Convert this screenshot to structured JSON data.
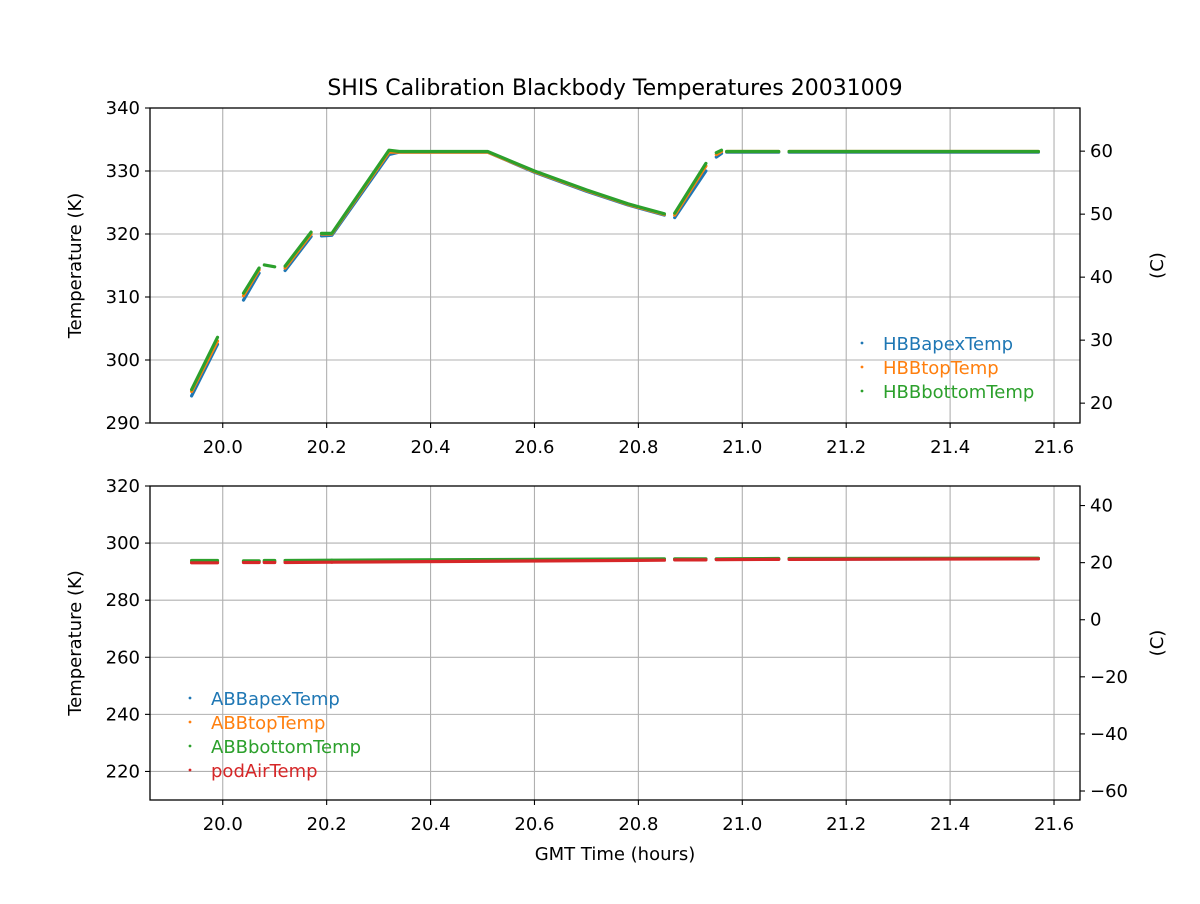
{
  "chart_data": [
    {
      "type": "scatter",
      "title": "SHIS Calibration Blackbody Temperatures 20031009",
      "xlabel": "",
      "ylabel": "Temperature (K)",
      "ylabel_right": "(C)",
      "xlim": [
        19.86,
        21.65
      ],
      "ylim": [
        290,
        340
      ],
      "xticks": [
        20.0,
        20.2,
        20.4,
        20.6,
        20.8,
        21.0,
        21.2,
        21.4,
        21.6
      ],
      "xtick_labels": [
        "20.0",
        "20.2",
        "20.4",
        "20.6",
        "20.8",
        "21.0",
        "21.2",
        "21.4",
        "21.6"
      ],
      "yticks": [
        290,
        300,
        310,
        320,
        330,
        340
      ],
      "ytick_labels": [
        "290",
        "300",
        "310",
        "320",
        "330",
        "340"
      ],
      "yticks_right": [
        20,
        30,
        40,
        50,
        60
      ],
      "ytick_labels_right": [
        "20",
        "30",
        "40",
        "50",
        "60"
      ],
      "grid": true,
      "legend_position": "lower-right",
      "series": [
        {
          "name": "HBBapexTemp",
          "color": "#1f77b4",
          "segments": [
            [
              [
                19.94,
                294.3
              ],
              [
                19.99,
                302.5
              ]
            ],
            [
              [
                20.04,
                309.5
              ],
              [
                20.07,
                313.8
              ]
            ],
            [
              [
                20.12,
                314.2
              ],
              [
                20.17,
                319.6
              ]
            ],
            [
              [
                20.19,
                319.7
              ],
              [
                20.21,
                319.8
              ],
              [
                20.32,
                332.6
              ],
              [
                20.34,
                333.0
              ],
              [
                20.51,
                333.0
              ],
              [
                20.6,
                329.8
              ],
              [
                20.7,
                326.8
              ],
              [
                20.78,
                324.6
              ],
              [
                20.85,
                323.0
              ]
            ],
            [
              [
                20.87,
                322.6
              ],
              [
                20.93,
                330.0
              ]
            ],
            [
              [
                20.95,
                332.2
              ],
              [
                20.96,
                332.8
              ]
            ],
            [
              [
                20.97,
                333.0
              ],
              [
                21.07,
                333.0
              ]
            ],
            [
              [
                21.09,
                333.0
              ],
              [
                21.57,
                333.0
              ]
            ]
          ]
        },
        {
          "name": "HBBtopTemp",
          "color": "#ff7f0e",
          "segments": [
            [
              [
                19.94,
                295.0
              ],
              [
                19.99,
                303.0
              ]
            ],
            [
              [
                20.04,
                310.2
              ],
              [
                20.07,
                314.3
              ]
            ],
            [
              [
                20.12,
                314.6
              ],
              [
                20.17,
                320.0
              ]
            ],
            [
              [
                20.19,
                320.0
              ],
              [
                20.21,
                320.0
              ],
              [
                20.32,
                333.0
              ],
              [
                20.34,
                333.0
              ],
              [
                20.51,
                333.0
              ],
              [
                20.6,
                329.9
              ],
              [
                20.7,
                326.9
              ],
              [
                20.78,
                324.7
              ],
              [
                20.85,
                323.1
              ]
            ],
            [
              [
                20.87,
                323.0
              ],
              [
                20.93,
                330.8
              ]
            ],
            [
              [
                20.95,
                332.6
              ],
              [
                20.96,
                333.1
              ]
            ],
            [
              [
                20.97,
                333.1
              ],
              [
                21.07,
                333.1
              ]
            ],
            [
              [
                21.09,
                333.1
              ],
              [
                21.57,
                333.1
              ]
            ]
          ]
        },
        {
          "name": "HBBbottomTemp",
          "color": "#2ca02c",
          "segments": [
            [
              [
                19.94,
                295.3
              ],
              [
                19.99,
                303.6
              ]
            ],
            [
              [
                20.04,
                310.6
              ],
              [
                20.07,
                314.6
              ]
            ],
            [
              [
                20.08,
                315.1
              ],
              [
                20.1,
                314.8
              ]
            ],
            [
              [
                20.12,
                314.9
              ],
              [
                20.17,
                320.3
              ]
            ],
            [
              [
                20.19,
                320.1
              ],
              [
                20.21,
                320.1
              ],
              [
                20.32,
                333.3
              ],
              [
                20.34,
                333.1
              ],
              [
                20.51,
                333.1
              ],
              [
                20.6,
                330.0
              ],
              [
                20.7,
                327.0
              ],
              [
                20.78,
                324.8
              ],
              [
                20.85,
                323.2
              ]
            ],
            [
              [
                20.87,
                323.3
              ],
              [
                20.93,
                331.2
              ]
            ],
            [
              [
                20.95,
                332.9
              ],
              [
                20.96,
                333.3
              ]
            ],
            [
              [
                20.97,
                333.1
              ],
              [
                21.07,
                333.1
              ]
            ],
            [
              [
                21.09,
                333.1
              ],
              [
                21.57,
                333.1
              ]
            ]
          ]
        }
      ]
    },
    {
      "type": "scatter",
      "title": "",
      "xlabel": "GMT Time (hours)",
      "ylabel": "Temperature (K)",
      "ylabel_right": "(C)",
      "xlim": [
        19.86,
        21.65
      ],
      "ylim": [
        210,
        320
      ],
      "xticks": [
        20.0,
        20.2,
        20.4,
        20.6,
        20.8,
        21.0,
        21.2,
        21.4,
        21.6
      ],
      "xtick_labels": [
        "20.0",
        "20.2",
        "20.4",
        "20.6",
        "20.8",
        "21.0",
        "21.2",
        "21.4",
        "21.6"
      ],
      "yticks": [
        220,
        240,
        260,
        280,
        300,
        320
      ],
      "ytick_labels": [
        "220",
        "240",
        "260",
        "280",
        "300",
        "320"
      ],
      "yticks_right": [
        -60,
        -40,
        -20,
        0,
        20,
        40
      ],
      "ytick_labels_right": [
        "−60",
        "−40",
        "−20",
        "0",
        "20",
        "40"
      ],
      "grid": true,
      "legend_position": "lower-left",
      "series": [
        {
          "name": "ABBapexTemp",
          "color": "#1f77b4",
          "segments": [
            [
              [
                19.94,
                293.4
              ],
              [
                19.99,
                293.4
              ]
            ],
            [
              [
                20.04,
                293.4
              ],
              [
                20.07,
                293.4
              ]
            ],
            [
              [
                20.08,
                293.5
              ],
              [
                20.1,
                293.5
              ]
            ],
            [
              [
                20.12,
                293.5
              ],
              [
                20.21,
                293.6
              ]
            ],
            [
              [
                20.21,
                293.6
              ],
              [
                20.85,
                294.3
              ]
            ],
            [
              [
                20.87,
                294.3
              ],
              [
                20.93,
                294.4
              ]
            ],
            [
              [
                20.95,
                294.4
              ],
              [
                21.07,
                294.4
              ]
            ],
            [
              [
                21.09,
                294.4
              ],
              [
                21.57,
                294.5
              ]
            ]
          ]
        },
        {
          "name": "ABBtopTemp",
          "color": "#ff7f0e",
          "segments": [
            [
              [
                19.94,
                293.6
              ],
              [
                19.99,
                293.6
              ]
            ],
            [
              [
                20.04,
                293.6
              ],
              [
                20.07,
                293.6
              ]
            ],
            [
              [
                20.08,
                293.6
              ],
              [
                20.1,
                293.6
              ]
            ],
            [
              [
                20.12,
                293.7
              ],
              [
                20.21,
                293.7
              ]
            ],
            [
              [
                20.21,
                293.8
              ],
              [
                20.85,
                294.3
              ]
            ],
            [
              [
                20.87,
                294.4
              ],
              [
                20.93,
                294.4
              ]
            ],
            [
              [
                20.95,
                294.4
              ],
              [
                21.07,
                294.5
              ]
            ],
            [
              [
                21.09,
                294.5
              ],
              [
                21.57,
                294.6
              ]
            ]
          ]
        },
        {
          "name": "ABBbottomTemp",
          "color": "#2ca02c",
          "segments": [
            [
              [
                19.94,
                293.9
              ],
              [
                19.99,
                293.9
              ]
            ],
            [
              [
                20.04,
                293.8
              ],
              [
                20.07,
                293.8
              ]
            ],
            [
              [
                20.08,
                293.9
              ],
              [
                20.1,
                293.9
              ]
            ],
            [
              [
                20.12,
                293.9
              ],
              [
                20.21,
                294.0
              ]
            ],
            [
              [
                20.21,
                294.0
              ],
              [
                20.85,
                294.5
              ]
            ],
            [
              [
                20.87,
                294.5
              ],
              [
                20.93,
                294.5
              ]
            ],
            [
              [
                20.95,
                294.5
              ],
              [
                21.07,
                294.6
              ]
            ],
            [
              [
                21.09,
                294.6
              ],
              [
                21.57,
                294.7
              ]
            ]
          ]
        },
        {
          "name": "podAirTemp",
          "color": "#d62728",
          "segments": [
            [
              [
                19.94,
                293.1
              ],
              [
                19.99,
                293.1
              ]
            ],
            [
              [
                20.04,
                293.2
              ],
              [
                20.07,
                293.2
              ]
            ],
            [
              [
                20.08,
                293.2
              ],
              [
                20.1,
                293.2
              ]
            ],
            [
              [
                20.12,
                293.2
              ],
              [
                20.21,
                293.3
              ]
            ],
            [
              [
                20.21,
                293.3
              ],
              [
                20.85,
                294.0
              ]
            ],
            [
              [
                20.87,
                294.1
              ],
              [
                20.93,
                294.1
              ]
            ],
            [
              [
                20.95,
                294.2
              ],
              [
                21.07,
                294.3
              ]
            ],
            [
              [
                21.09,
                294.3
              ],
              [
                21.57,
                294.5
              ]
            ]
          ]
        }
      ]
    }
  ]
}
